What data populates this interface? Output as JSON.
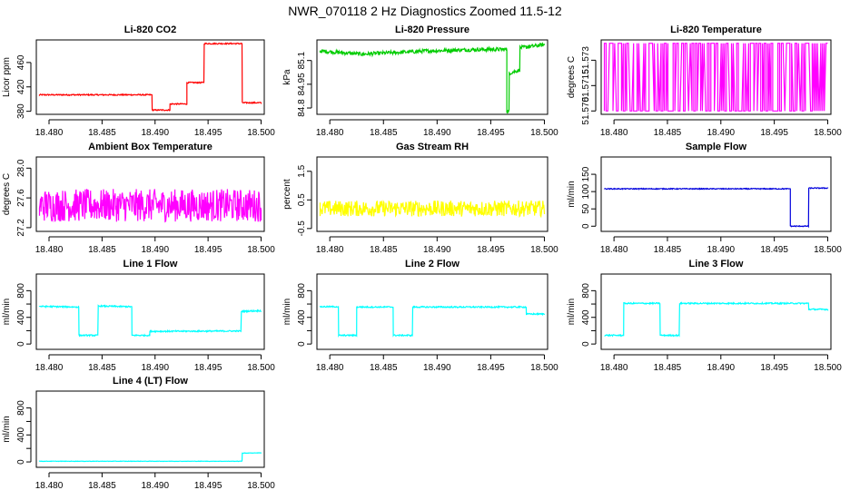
{
  "figure": {
    "title": "NWR_070118  2 Hz Diagnostics Zoomed 11.5-12"
  },
  "chart_data": [
    {
      "id": "p1",
      "type": "line",
      "title": "Li-820 CO2",
      "ylabel": "Licor ppm",
      "color": "#ff0000",
      "xlim": [
        18.4788,
        18.5003
      ],
      "ylim": [
        375,
        497
      ],
      "xticks": [
        18.48,
        18.485,
        18.49,
        18.495,
        18.5
      ],
      "xtick_labels": [
        "18.480",
        "18.485",
        "18.490",
        "18.495",
        "18.500"
      ],
      "yticks": [
        380,
        420,
        460
      ],
      "ytick_labels": [
        "380",
        "420",
        "460"
      ],
      "style": "noise",
      "noise": 1.0,
      "x": [
        18.4791,
        18.4897,
        18.4897,
        18.4914,
        18.4914,
        18.493,
        18.493,
        18.4946,
        18.4946,
        18.4982,
        18.4982,
        18.5
      ],
      "y": [
        407,
        407,
        382,
        382,
        392,
        392,
        427,
        427,
        491,
        491,
        394,
        394
      ]
    },
    {
      "id": "p2",
      "type": "line",
      "title": "Li-820 Pressure",
      "ylabel": "kPa",
      "color": "#00cc00",
      "xlim": [
        18.4788,
        18.5003
      ],
      "ylim": [
        84.76,
        85.23
      ],
      "xticks": [
        18.48,
        18.485,
        18.49,
        18.495,
        18.5
      ],
      "xtick_labels": [
        "18.480",
        "18.485",
        "18.490",
        "18.495",
        "18.500"
      ],
      "yticks": [
        84.8,
        84.95,
        85.1
      ],
      "ytick_labels": [
        "84.8",
        "84.95",
        "85.1"
      ],
      "style": "noise",
      "noise": 0.012,
      "x": [
        18.4791,
        18.483,
        18.486,
        18.489,
        18.494,
        18.4965,
        18.4965,
        18.4967,
        18.4967,
        18.4977,
        18.4977,
        18.5
      ],
      "y": [
        85.16,
        85.14,
        85.15,
        85.16,
        85.17,
        85.17,
        84.78,
        84.78,
        85.02,
        85.04,
        85.18,
        85.2
      ]
    },
    {
      "id": "p3",
      "type": "line",
      "title": "Li-820 Temperature",
      "ylabel": "degrees C",
      "color": "#ff00ff",
      "xlim": [
        18.4788,
        18.5003
      ],
      "ylim": [
        51.5698,
        51.5742
      ],
      "xticks": [
        18.48,
        18.485,
        18.49,
        18.495,
        18.5
      ],
      "xtick_labels": [
        "18.480",
        "18.485",
        "18.490",
        "18.495",
        "18.500"
      ],
      "yticks": [
        51.57,
        51.5715,
        51.573
      ],
      "ytick_labels": [
        "51.570",
        "51.5715",
        "51.573"
      ],
      "style": "toggle",
      "low": 51.57,
      "high": 51.574,
      "x": [
        18.4791,
        18.5
      ],
      "y": [
        51.57,
        51.574
      ]
    },
    {
      "id": "p4",
      "type": "line",
      "title": "Ambient Box Temperature",
      "ylabel": "degrees C",
      "color": "#ff00ff",
      "xlim": [
        18.4788,
        18.5003
      ],
      "ylim": [
        27.15,
        28.15
      ],
      "xticks": [
        18.48,
        18.485,
        18.49,
        18.495,
        18.5
      ],
      "xtick_labels": [
        "18.480",
        "18.485",
        "18.490",
        "18.495",
        "18.500"
      ],
      "yticks": [
        27.2,
        27.6,
        28.0
      ],
      "ytick_labels": [
        "27.2",
        "27.6",
        "28.0"
      ],
      "style": "noise",
      "noise": 0.22,
      "x": [
        18.4791,
        18.5
      ],
      "y": [
        27.5,
        27.5
      ]
    },
    {
      "id": "p5",
      "type": "line",
      "title": "Gas Stream RH",
      "ylabel": "percent",
      "color": "#ffff00",
      "xlim": [
        18.4788,
        18.5003
      ],
      "ylim": [
        -0.6,
        2.0
      ],
      "xticks": [
        18.48,
        18.485,
        18.49,
        18.495,
        18.5
      ],
      "xtick_labels": [
        "18.480",
        "18.485",
        "18.490",
        "18.495",
        "18.500"
      ],
      "yticks": [
        -0.5,
        0.5,
        1.5
      ],
      "ytick_labels": [
        "-0.5",
        "0.5",
        "1.5"
      ],
      "style": "noise",
      "noise": 0.28,
      "x": [
        18.4791,
        18.5
      ],
      "y": [
        0.2,
        0.2
      ]
    },
    {
      "id": "p6",
      "type": "line",
      "title": "Sample Flow",
      "ylabel": "ml/min",
      "color": "#0000dd",
      "xlim": [
        18.4788,
        18.5003
      ],
      "ylim": [
        -15,
        200
      ],
      "xticks": [
        18.48,
        18.485,
        18.49,
        18.495,
        18.5
      ],
      "xtick_labels": [
        "18.480",
        "18.485",
        "18.490",
        "18.495",
        "18.500"
      ],
      "yticks": [
        0,
        50,
        100,
        150
      ],
      "ytick_labels": [
        "0",
        "50",
        "100",
        "150"
      ],
      "style": "noise",
      "noise": 1.3,
      "x": [
        18.4791,
        18.4965,
        18.4965,
        18.4982,
        18.4982,
        18.5
      ],
      "y": [
        108,
        108,
        0,
        0,
        110,
        110
      ]
    },
    {
      "id": "p7",
      "type": "line",
      "title": "Line 1 Flow",
      "ylabel": "ml/min",
      "color": "#00ffff",
      "xlim": [
        18.4788,
        18.5003
      ],
      "ylim": [
        -80,
        1050
      ],
      "xticks": [
        18.48,
        18.485,
        18.49,
        18.495,
        18.5
      ],
      "xtick_labels": [
        "18.480",
        "18.485",
        "18.490",
        "18.495",
        "18.500"
      ],
      "yticks": [
        0,
        200,
        400,
        600,
        800
      ],
      "ytick_labels": [
        "0",
        "",
        "400",
        "",
        "800"
      ],
      "style": "noise",
      "noise": 10,
      "x": [
        18.4791,
        18.4828,
        18.4828,
        18.4846,
        18.4846,
        18.4878,
        18.4878,
        18.4895,
        18.4895,
        18.4981,
        18.4981,
        18.5
      ],
      "y": [
        565,
        555,
        130,
        130,
        570,
        560,
        130,
        130,
        190,
        195,
        490,
        500
      ]
    },
    {
      "id": "p8",
      "type": "line",
      "title": "Line 2 Flow",
      "ylabel": "ml/min",
      "color": "#00ffff",
      "xlim": [
        18.4788,
        18.5003
      ],
      "ylim": [
        -80,
        1050
      ],
      "xticks": [
        18.48,
        18.485,
        18.49,
        18.495,
        18.5
      ],
      "xtick_labels": [
        "18.480",
        "18.485",
        "18.490",
        "18.495",
        "18.500"
      ],
      "yticks": [
        0,
        200,
        400,
        600,
        800
      ],
      "ytick_labels": [
        "0",
        "",
        "400",
        "",
        "800"
      ],
      "style": "noise",
      "noise": 10,
      "x": [
        18.4791,
        18.4808,
        18.4808,
        18.4825,
        18.4825,
        18.4859,
        18.4859,
        18.4877,
        18.4877,
        18.4983,
        18.4983,
        18.5
      ],
      "y": [
        560,
        560,
        130,
        130,
        555,
        555,
        130,
        130,
        555,
        555,
        450,
        450
      ]
    },
    {
      "id": "p9",
      "type": "line",
      "title": "Line 3 Flow",
      "ylabel": "ml/min",
      "color": "#00ffff",
      "xlim": [
        18.4788,
        18.5003
      ],
      "ylim": [
        -80,
        1050
      ],
      "xticks": [
        18.48,
        18.485,
        18.49,
        18.495,
        18.5
      ],
      "xtick_labels": [
        "18.480",
        "18.485",
        "18.490",
        "18.495",
        "18.500"
      ],
      "yticks": [
        0,
        200,
        400,
        600,
        800
      ],
      "ytick_labels": [
        "0",
        "",
        "400",
        "",
        "800"
      ],
      "style": "noise",
      "noise": 10,
      "x": [
        18.4791,
        18.4809,
        18.4809,
        18.4843,
        18.4843,
        18.4861,
        18.4861,
        18.4982,
        18.4982,
        18.5
      ],
      "y": [
        130,
        130,
        610,
        610,
        130,
        130,
        610,
        610,
        520,
        520
      ]
    },
    {
      "id": "p10",
      "type": "line",
      "title": "Line 4 (LT) Flow",
      "ylabel": "ml/min",
      "color": "#00ffff",
      "xlim": [
        18.4788,
        18.5003
      ],
      "ylim": [
        -80,
        1050
      ],
      "xticks": [
        18.48,
        18.485,
        18.49,
        18.495,
        18.5
      ],
      "xtick_labels": [
        "18.480",
        "18.485",
        "18.490",
        "18.495",
        "18.500"
      ],
      "yticks": [
        0,
        200,
        400,
        600,
        800
      ],
      "ytick_labels": [
        "0",
        "",
        "400",
        "",
        "800"
      ],
      "style": "noise",
      "noise": 3,
      "x": [
        18.4791,
        18.4982,
        18.4982,
        18.5
      ],
      "y": [
        10,
        10,
        130,
        135
      ]
    }
  ]
}
